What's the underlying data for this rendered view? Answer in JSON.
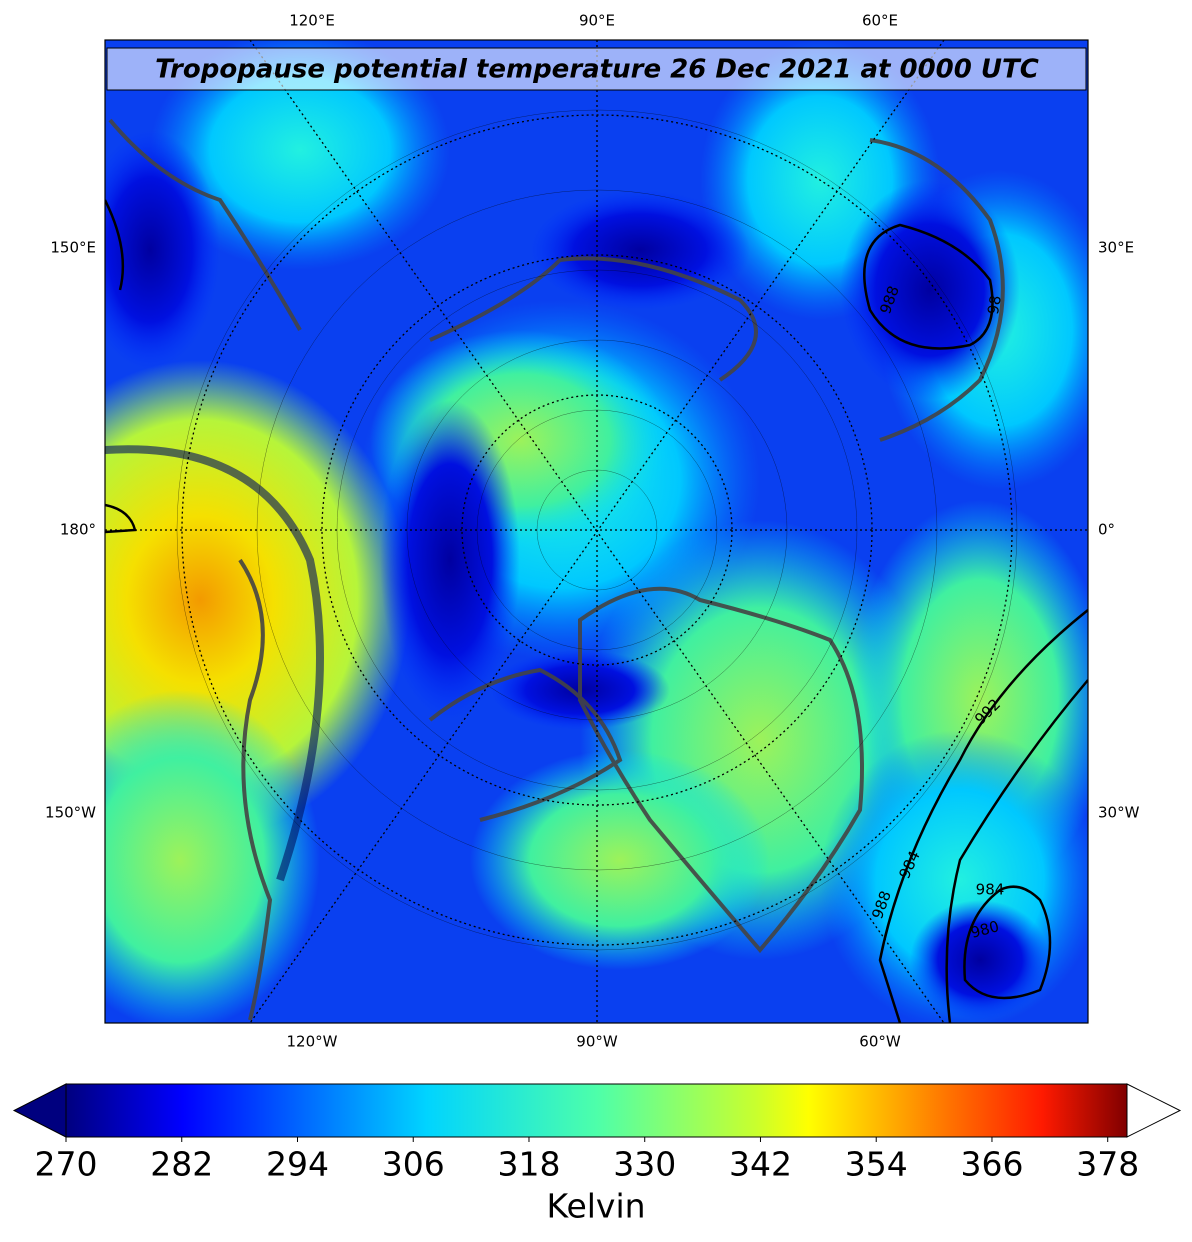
{
  "map": {
    "title": "Tropopause potential temperature 26 Dec 2021 at 0000 UTC",
    "top_labels": [
      "120°E",
      "90°E",
      "60°E"
    ],
    "bottom_labels": [
      "120°W",
      "90°W",
      "60°W"
    ],
    "left_labels": [
      "150°E",
      "180°",
      "150°W"
    ],
    "right_labels": [
      "30°E",
      "0°",
      "30°W"
    ],
    "contour_labels": [
      "988",
      "98",
      "992",
      "984",
      "984",
      "988",
      "980"
    ]
  },
  "colorbar": {
    "label": "Kelvin",
    "range": [
      270,
      380
    ],
    "ticks": [
      270,
      282,
      294,
      306,
      318,
      330,
      342,
      354,
      366,
      378
    ]
  }
}
